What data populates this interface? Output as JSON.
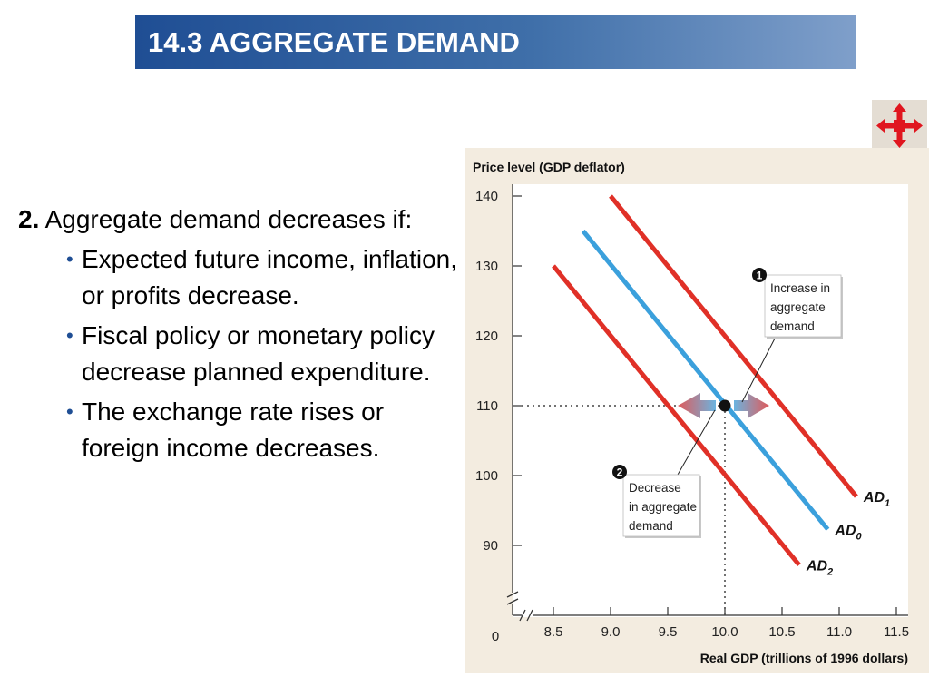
{
  "slide": {
    "title": "14.3 AGGREGATE DEMAND"
  },
  "nav": {
    "icon": "move-arrows-icon",
    "icon_color": "#e0161f"
  },
  "content": {
    "point_number": "2.",
    "point_text": "Aggregate demand decreases if:",
    "bullets": [
      "Expected future income, inflation, or profits decrease.",
      "Fiscal policy or monetary policy decrease planned expenditure.",
      "The exchange rate rises or foreign income decreases."
    ]
  },
  "chart_data": {
    "type": "line",
    "ylabel": "Price level (GDP deflator)",
    "xlabel": "Real GDP (trillions of 1996 dollars)",
    "x_ticks": [
      "8.5",
      "9.0",
      "9.5",
      "10.0",
      "10.5",
      "11.0",
      "11.5"
    ],
    "y_ticks": [
      "90",
      "100",
      "110",
      "120",
      "130",
      "140"
    ],
    "origin_label": "0",
    "xlim": [
      8.5,
      11.5
    ],
    "ylim": [
      90,
      140
    ],
    "axis_break": true,
    "grid": false,
    "series": [
      {
        "name": "AD1",
        "base": "AD",
        "sub": "1",
        "color": "#e03027",
        "points": [
          [
            9.0,
            140
          ],
          [
            11.15,
            97
          ]
        ]
      },
      {
        "name": "AD0",
        "base": "AD",
        "sub": "0",
        "color": "#3ba0dc",
        "points": [
          [
            8.76,
            135
          ],
          [
            10.9,
            92.3
          ]
        ]
      },
      {
        "name": "AD2",
        "base": "AD",
        "sub": "2",
        "color": "#e03027",
        "points": [
          [
            8.5,
            130
          ],
          [
            10.65,
            87.2
          ]
        ]
      }
    ],
    "equilibrium_point": {
      "x": 10.0,
      "y": 110
    },
    "annotations": [
      {
        "number": "1",
        "lines": [
          "Increase in",
          "aggregate",
          "demand"
        ]
      },
      {
        "number": "2",
        "lines": [
          "Decrease",
          "in aggregate",
          "demand"
        ]
      }
    ],
    "colors": {
      "background": "#f3ece0",
      "plot_area": "#ffffff",
      "increase_arrow": "#e05a5a",
      "decrease_arrow": "#6bb4e0"
    }
  }
}
